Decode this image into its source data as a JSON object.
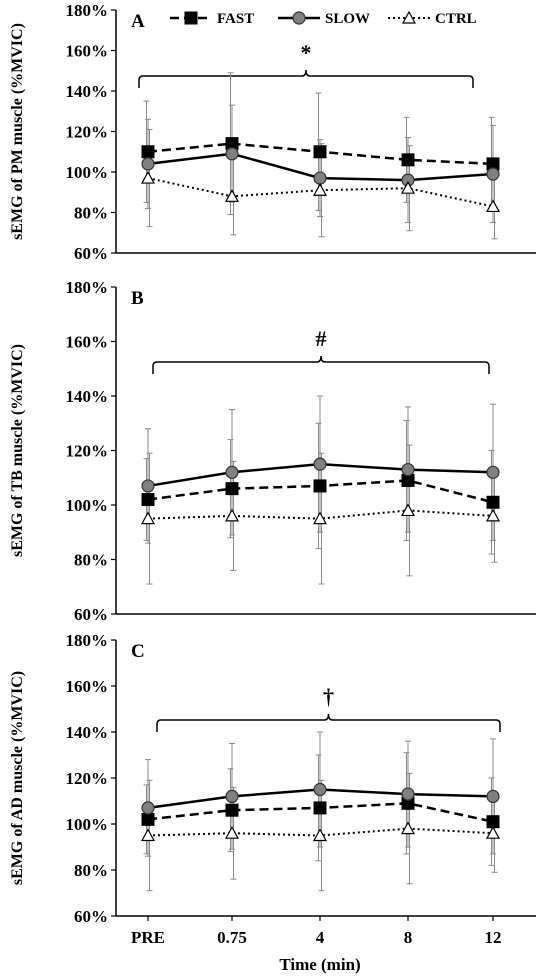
{
  "chart_data": {
    "type": "line",
    "x": [
      "PRE",
      "0.75",
      "4",
      "8",
      "12"
    ],
    "xlabel": "Time (min)",
    "legend": {
      "placement": "top",
      "entries": [
        {
          "name": "FAST",
          "style": "dashed",
          "marker": "square",
          "color": "#000000"
        },
        {
          "name": "SLOW",
          "style": "solid",
          "marker": "circle",
          "color": "#808080"
        },
        {
          "name": "CTRL",
          "style": "dotted",
          "marker": "triangle",
          "color": "#ffffff"
        }
      ]
    },
    "panels": [
      {
        "letter": "A",
        "ylabel": "sEMG of PM muscle (%MVIC)",
        "significance": "*",
        "ylim": [
          60,
          180
        ],
        "yticks": [
          "60%",
          "80%",
          "100%",
          "120%",
          "140%",
          "160%",
          "180%"
        ],
        "series": [
          {
            "name": "FAST",
            "values": [
              110,
              114,
              110,
              106,
              104
            ],
            "err": [
              25,
              35,
              29,
              21,
              23
            ]
          },
          {
            "name": "SLOW",
            "values": [
              104,
              109,
              97,
              96,
              99
            ],
            "err": [
              22,
              24,
              19,
              21,
              24
            ]
          },
          {
            "name": "CTRL",
            "values": [
              97,
              88,
              91,
              92,
              83
            ],
            "err": [
              24,
              19,
              23,
              21,
              16
            ]
          }
        ]
      },
      {
        "letter": "B",
        "ylabel": "sEMG of TB muscle (%MVIC)",
        "significance": "#",
        "ylim": [
          60,
          180
        ],
        "yticks": [
          "60%",
          "80%",
          "100%",
          "120%",
          "140%",
          "160%",
          "180%"
        ],
        "series": [
          {
            "name": "FAST",
            "values": [
              102,
              106,
              107,
              109,
              101
            ],
            "err": [
              15,
              18,
              23,
              22,
              19
            ]
          },
          {
            "name": "SLOW",
            "values": [
              107,
              112,
              115,
              113,
              112
            ],
            "err": [
              21,
              23,
              25,
              23,
              25
            ]
          },
          {
            "name": "CTRL",
            "values": [
              95,
              96,
              95,
              98,
              96
            ],
            "err": [
              24,
              20,
              24,
              24,
              17
            ]
          }
        ]
      },
      {
        "letter": "C",
        "ylabel": "sEMG of AD muscle (%MVIC)",
        "significance": "†",
        "ylim": [
          60,
          180
        ],
        "yticks": [
          "60%",
          "80%",
          "100%",
          "120%",
          "140%",
          "160%",
          "180%"
        ],
        "series": [
          {
            "name": "FAST",
            "values": [
              102,
              106,
              107,
              109,
              101
            ],
            "err": [
              15,
              18,
              23,
              22,
              19
            ]
          },
          {
            "name": "SLOW",
            "values": [
              107,
              112,
              115,
              113,
              112
            ],
            "err": [
              21,
              23,
              25,
              23,
              25
            ]
          },
          {
            "name": "CTRL",
            "values": [
              95,
              96,
              95,
              98,
              96
            ],
            "err": [
              24,
              20,
              24,
              24,
              17
            ]
          }
        ]
      }
    ]
  }
}
